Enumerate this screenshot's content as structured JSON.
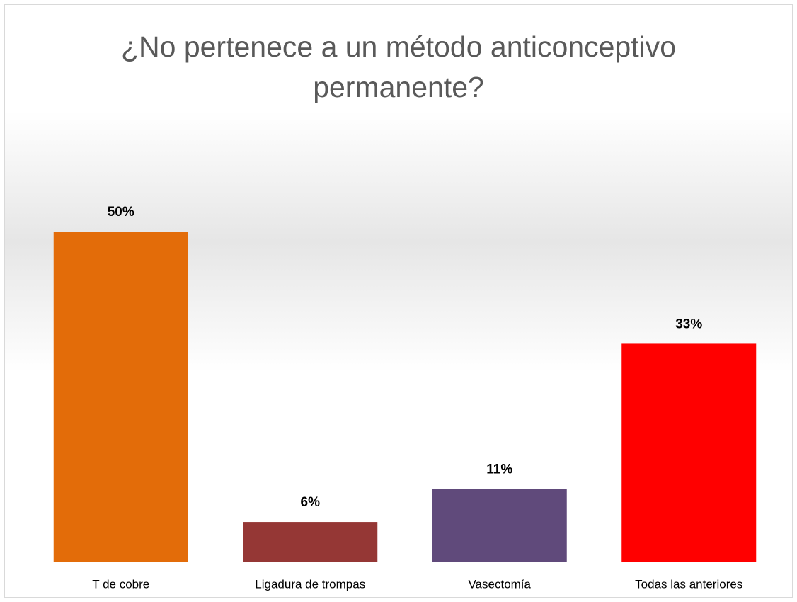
{
  "chart_data": {
    "type": "bar",
    "title": "¿No pertenece a un método anticonceptivo permanente?",
    "categories": [
      "T de cobre",
      "Ligadura de trompas",
      "Vasectomía",
      "Todas las anteriores"
    ],
    "values": [
      50,
      6,
      11,
      33
    ],
    "value_labels": [
      "50%",
      "6%",
      "11%",
      "33%"
    ],
    "colors": [
      "#e36c09",
      "#953735",
      "#604a7b",
      "#ff0000"
    ]
  }
}
